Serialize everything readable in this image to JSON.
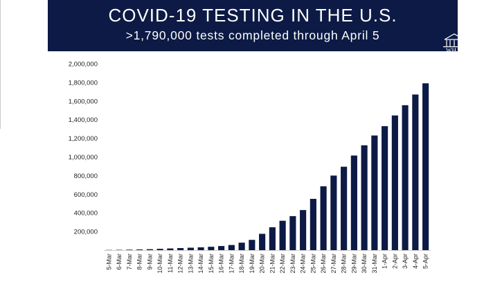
{
  "banner": {
    "title": "COVID-19 TESTING IN THE U.S.",
    "subtitle": ">1,790,000 tests completed through April 5",
    "seal_text": "WH",
    "background": "#0c1a45",
    "seal_icon": "white-house-icon"
  },
  "chart_data": {
    "type": "bar",
    "title": "",
    "xlabel": "",
    "ylabel": "",
    "ylim": [
      0,
      2000000
    ],
    "yticks": [
      200000,
      400000,
      600000,
      800000,
      1000000,
      1200000,
      1400000,
      1600000,
      1800000,
      2000000
    ],
    "ytick_labels": [
      "200,000",
      "400,000",
      "600,000",
      "800,000",
      "1,000,000",
      "1,200,000",
      "1,400,000",
      "1,600,000",
      "1,800,000",
      "2,000,000"
    ],
    "grid": false,
    "legend": "none",
    "bar_color": "#0c1a45",
    "categories": [
      "5-Mar",
      "6-Mar",
      "7-Mar",
      "8-Mar",
      "9-Mar",
      "10-Mar",
      "11-Mar",
      "12-Mar",
      "13-Mar",
      "14-Mar",
      "15-Mar",
      "16-Mar",
      "17-Mar",
      "18-Mar",
      "19-Mar",
      "20-Mar",
      "21-Mar",
      "22-Mar",
      "23-Mar",
      "24-Mar",
      "25-Mar",
      "26-Mar",
      "27-Mar",
      "28-Mar",
      "29-Mar",
      "30-Mar",
      "31-Mar",
      "1-Apr",
      "2-Apr",
      "3-Apr",
      "4-Apr",
      "5-Apr"
    ],
    "values": [
      2000,
      3000,
      5000,
      7000,
      10000,
      14000,
      18000,
      22000,
      26000,
      30000,
      36000,
      44000,
      55000,
      80000,
      110000,
      175000,
      245000,
      315000,
      365000,
      430000,
      550000,
      685000,
      800000,
      895000,
      1015000,
      1125000,
      1230000,
      1330000,
      1445000,
      1555000,
      1670000,
      1790000
    ]
  }
}
